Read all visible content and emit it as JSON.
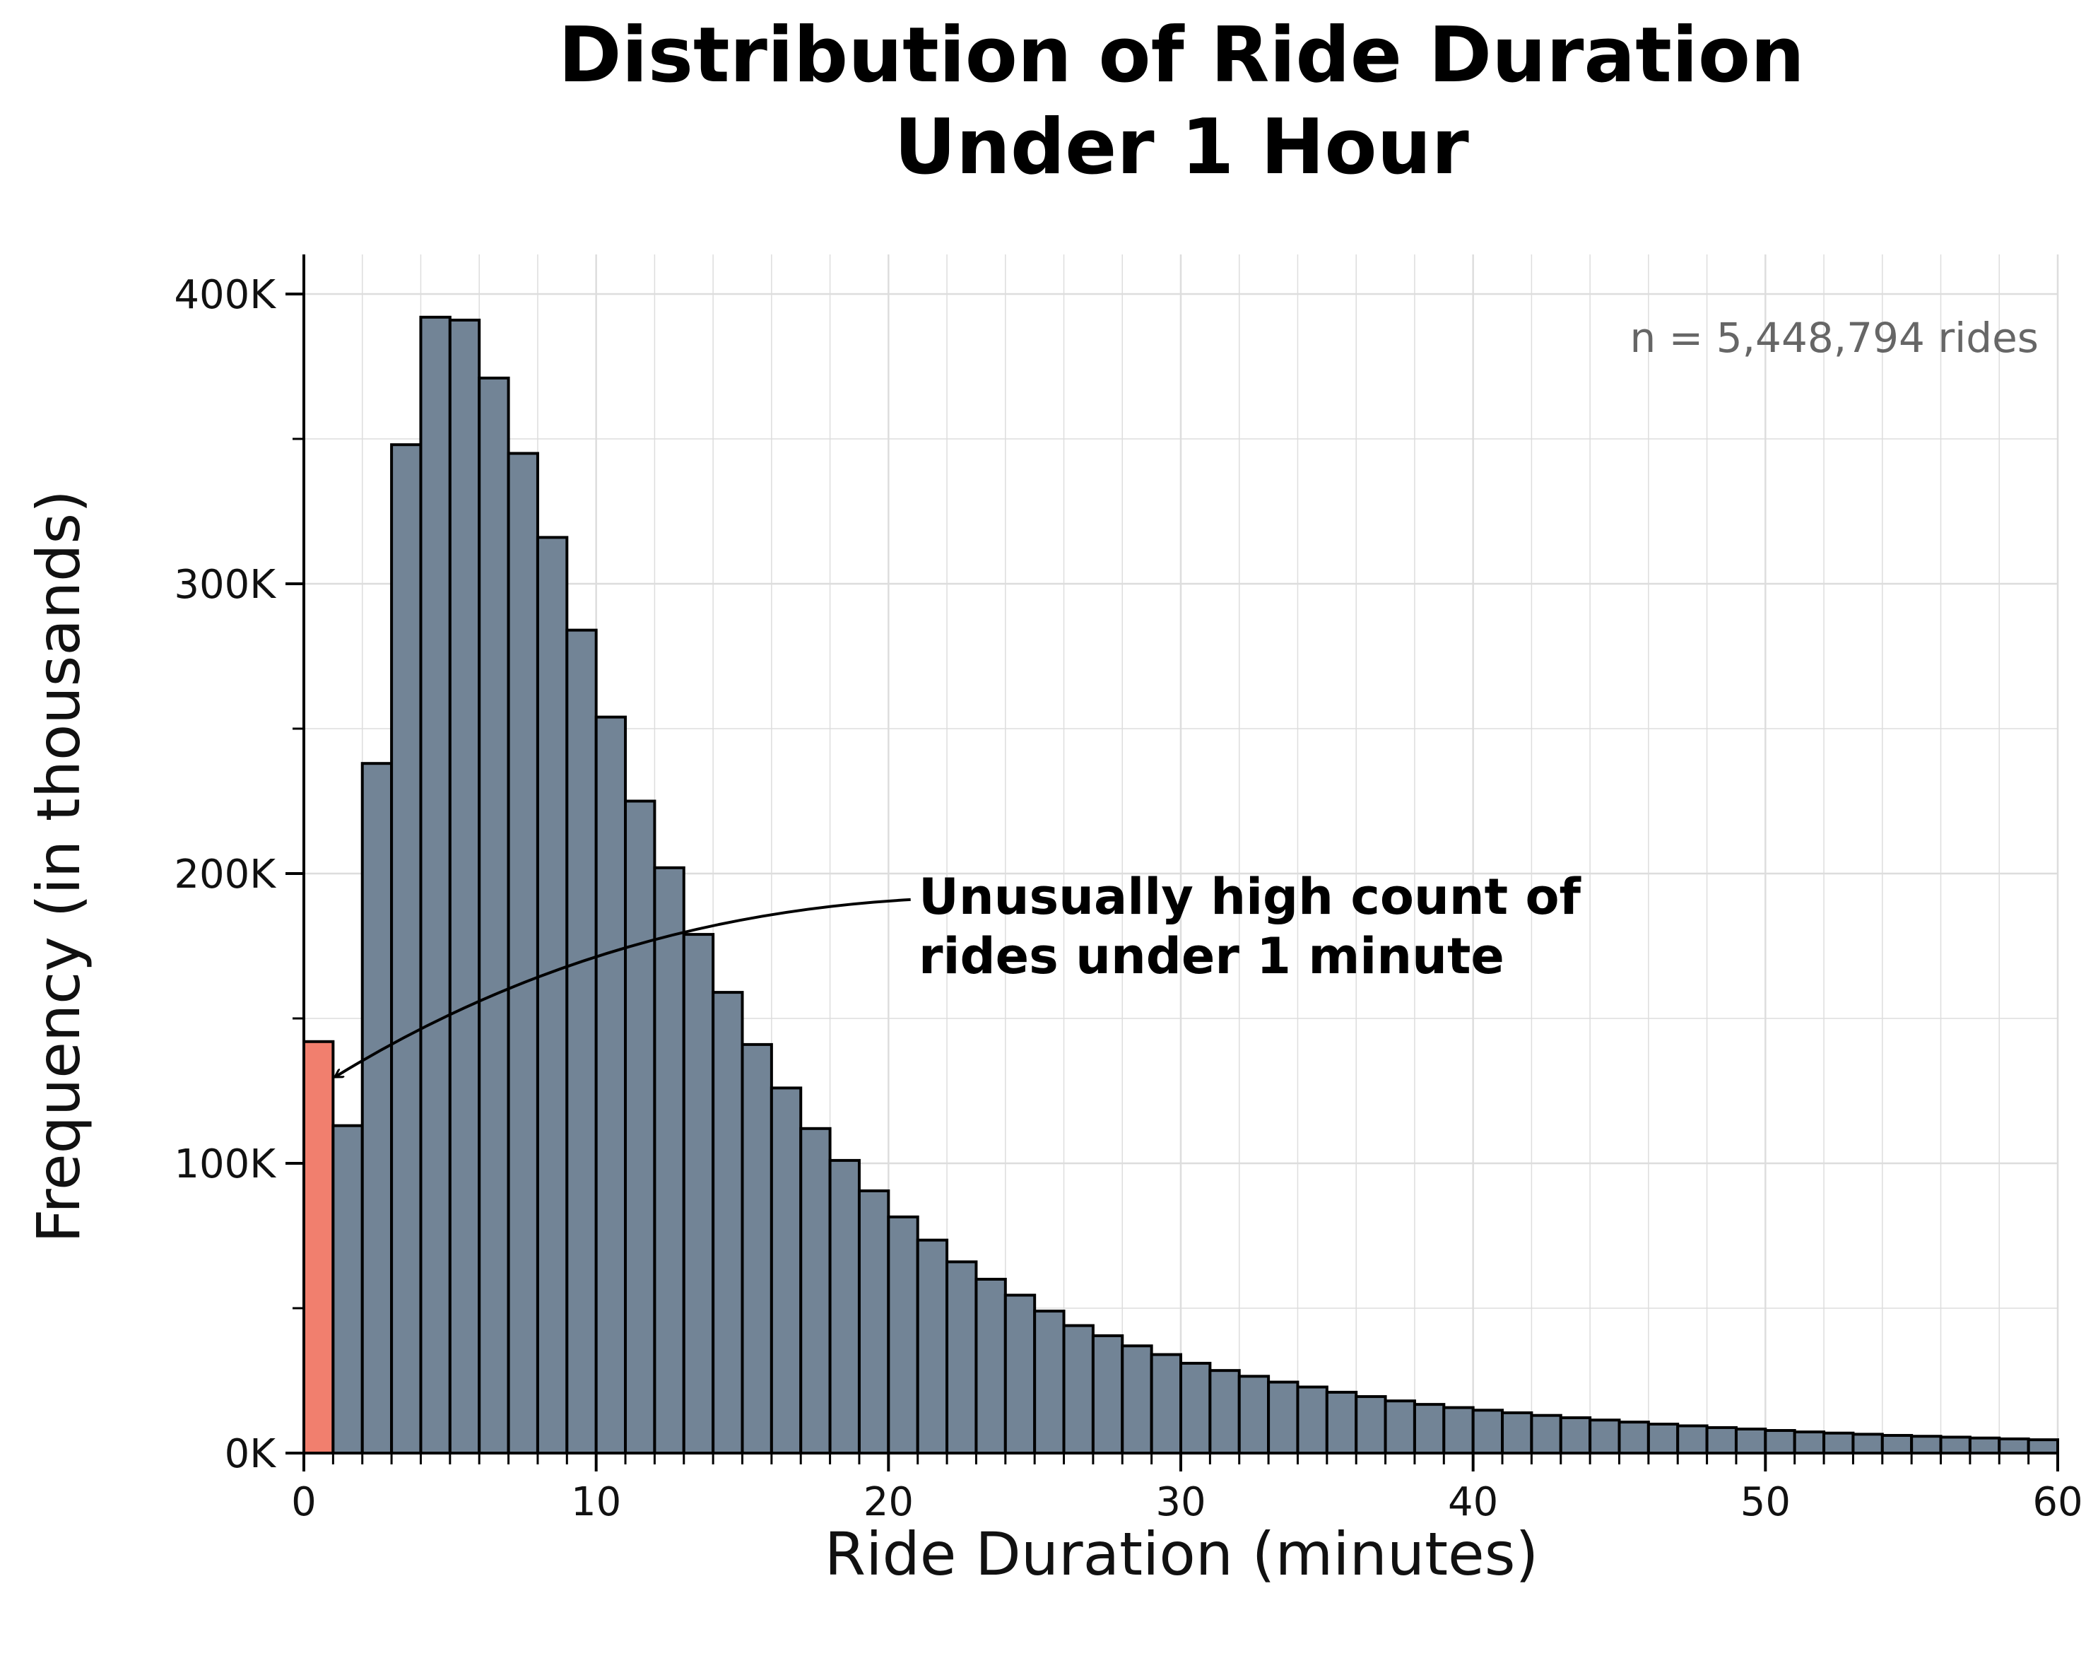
{
  "chart_data": {
    "type": "bar",
    "title_lines": [
      "Distribution of Ride Duration",
      "Under 1 Hour"
    ],
    "xlabel": "Ride Duration (minutes)",
    "ylabel": "Frequency (in thousands)",
    "xlim": [
      0,
      60
    ],
    "ylim": [
      0,
      400000
    ],
    "bin_width": 1,
    "x_ticks": [
      0,
      10,
      20,
      30,
      40,
      50,
      60
    ],
    "x_tick_labels": [
      "0",
      "10",
      "20",
      "30",
      "40",
      "50",
      "60"
    ],
    "y_ticks": [
      0,
      100000,
      200000,
      300000,
      400000
    ],
    "y_tick_labels": [
      "0K",
      "100K",
      "200K",
      "300K",
      "400K"
    ],
    "grid": true,
    "bin_starts": [
      0,
      1,
      2,
      3,
      4,
      5,
      6,
      7,
      8,
      9,
      10,
      11,
      12,
      13,
      14,
      15,
      16,
      17,
      18,
      19,
      20,
      21,
      22,
      23,
      24,
      25,
      26,
      27,
      28,
      29,
      30,
      31,
      32,
      33,
      34,
      35,
      36,
      37,
      38,
      39,
      40,
      41,
      42,
      43,
      44,
      45,
      46,
      47,
      48,
      49,
      50,
      51,
      52,
      53,
      54,
      55,
      56,
      57,
      58,
      59
    ],
    "values": [
      142000,
      113000,
      238000,
      348000,
      392000,
      391000,
      371000,
      345000,
      316000,
      284000,
      254000,
      225000,
      202000,
      179000,
      159000,
      141000,
      126000,
      112000,
      101000,
      90500,
      81500,
      73500,
      66000,
      60000,
      54500,
      49000,
      44000,
      40500,
      37000,
      34000,
      31000,
      28500,
      26500,
      24500,
      22800,
      21000,
      19500,
      18000,
      16800,
      15700,
      14800,
      13900,
      13000,
      12200,
      11400,
      10700,
      10000,
      9400,
      8800,
      8300,
      7800,
      7300,
      6900,
      6500,
      6100,
      5800,
      5500,
      5200,
      4900,
      4600
    ],
    "highlight_bins": [
      0
    ],
    "colors": {
      "bar_fill": "#728496",
      "highlight_fill": "#f17f6e",
      "bar_edge": "#000000",
      "grid": "#dddddd",
      "n_label": "#666666"
    },
    "annotation": {
      "text_lines": [
        "Unusually high count of",
        "rides under 1 minute"
      ],
      "target_x": 1.1,
      "target_y": 130000,
      "text_x": 21,
      "text_y": 191000
    },
    "n_label": "n = 5,448,794 rides"
  }
}
